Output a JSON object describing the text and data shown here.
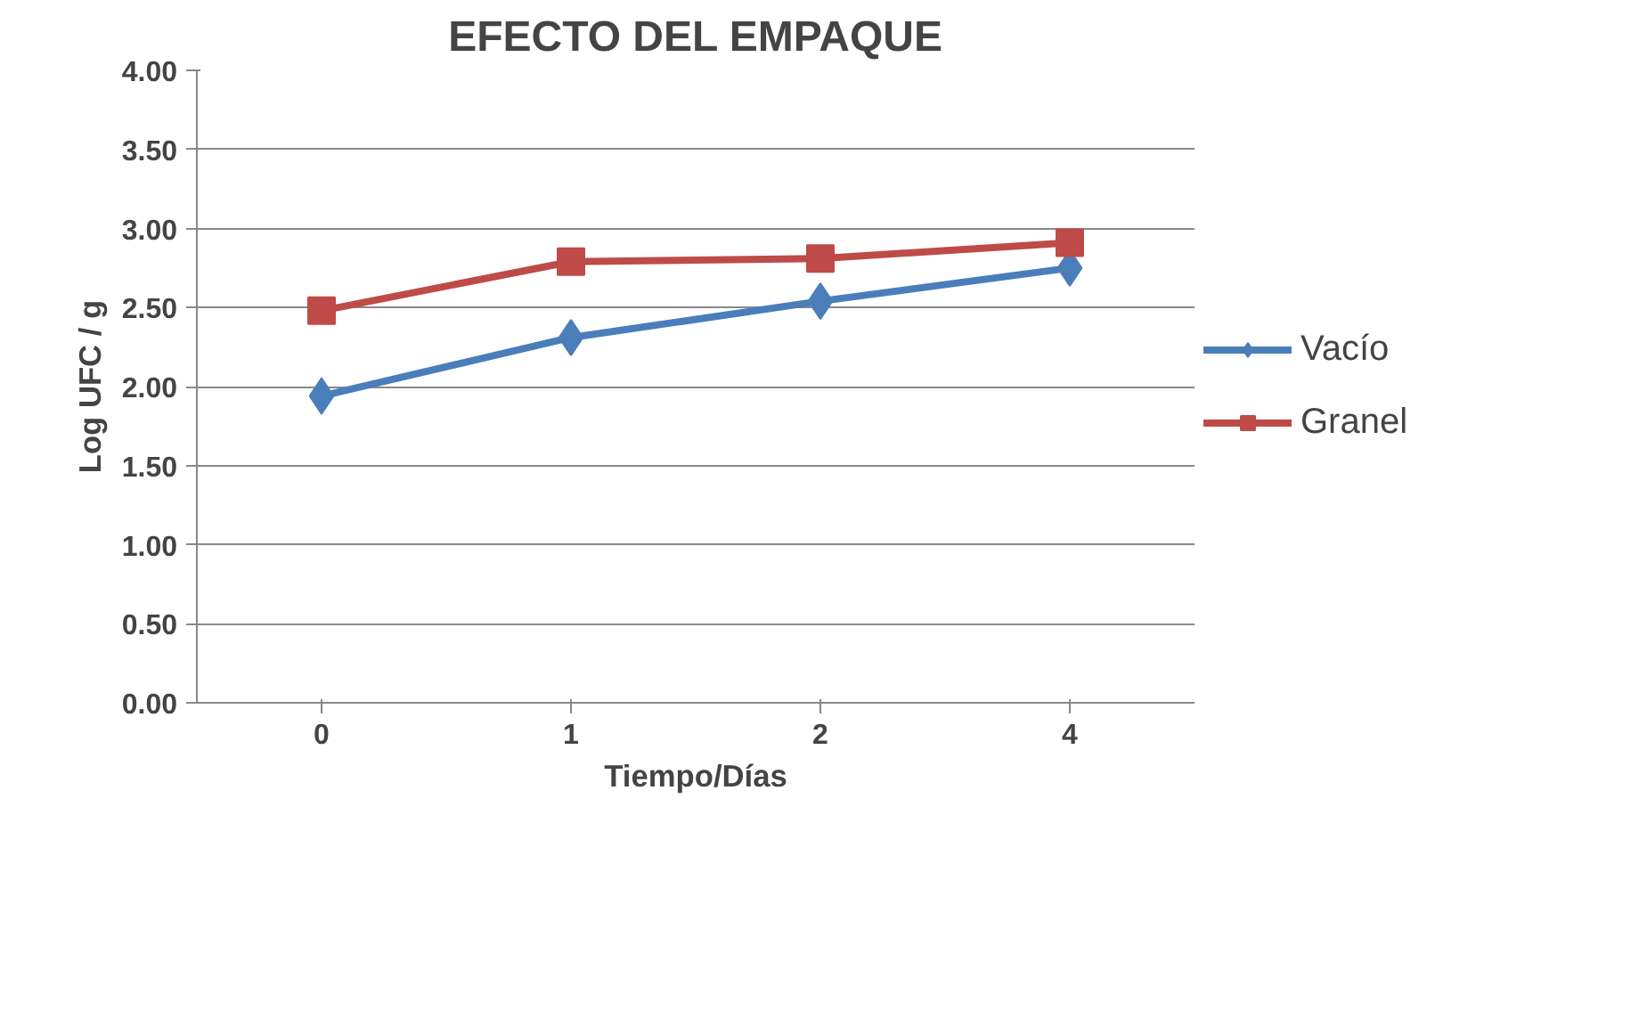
{
  "chart_data": {
    "type": "line",
    "title": "EFECTO DEL EMPAQUE",
    "xlabel": "Tiempo/Días",
    "ylabel": "Log UFC / g",
    "categories": [
      "0",
      "1",
      "2",
      "4"
    ],
    "series": [
      {
        "name": "Vacío",
        "color": "#4a7ebb",
        "marker": "diamond",
        "values": [
          1.94,
          2.31,
          2.54,
          2.75
        ]
      },
      {
        "name": "Granel",
        "color": "#be4b48",
        "marker": "square",
        "values": [
          2.48,
          2.79,
          2.81,
          2.91
        ]
      }
    ],
    "ylim": [
      0,
      4
    ],
    "yticks": [
      {
        "value": 0,
        "label": "0.00"
      },
      {
        "value": 0.5,
        "label": "0.50"
      },
      {
        "value": 1,
        "label": "1.00"
      },
      {
        "value": 1.5,
        "label": "1.50"
      },
      {
        "value": 2,
        "label": "2.00"
      },
      {
        "value": 2.5,
        "label": "2.50"
      },
      {
        "value": 3,
        "label": "3.00"
      },
      {
        "value": 3.5,
        "label": "3.50"
      },
      {
        "value": 4,
        "label": "4.00"
      }
    ],
    "grid": "y",
    "legend": "right",
    "line_style": "solid"
  }
}
